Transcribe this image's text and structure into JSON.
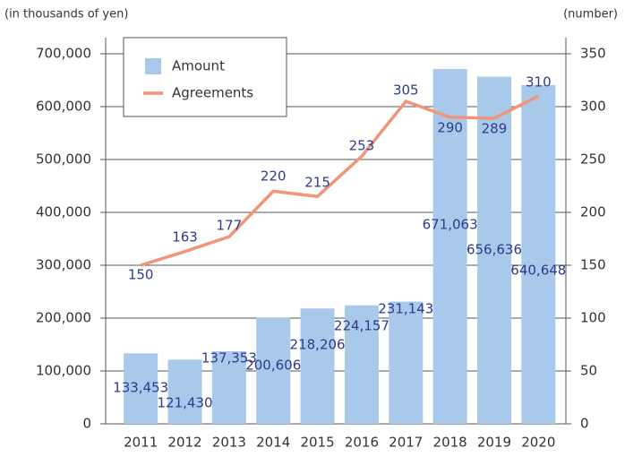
{
  "chart_data": {
    "type": "bar-line",
    "ylabel": "(in thousands of yen)",
    "y2label": "(number)",
    "categories": [
      "2011",
      "2012",
      "2013",
      "2014",
      "2015",
      "2016",
      "2017",
      "2018",
      "2019",
      "2020"
    ],
    "series": [
      {
        "name": "Amount",
        "color": "#a9c9ea",
        "type": "bar",
        "values": [
          133453,
          121430,
          137353,
          200606,
          218206,
          224157,
          231143,
          671063,
          656636,
          640648
        ],
        "value_labels": [
          "133,453",
          "121,430",
          "137,353",
          "200,606",
          "218,206",
          "224,157",
          "231,143",
          "671,063",
          "656,636",
          "640,648"
        ]
      },
      {
        "name": "Agreements",
        "color": "#f0957a",
        "type": "line",
        "axis": "y2",
        "values": [
          150,
          163,
          177,
          220,
          215,
          253,
          305,
          290,
          289,
          310
        ]
      }
    ],
    "ylim": [
      0,
      700000
    ],
    "yticks": [
      0,
      {
        "value": 100000,
        "label": "100,000"
      },
      {
        "value": 200000,
        "label": "200,000"
      },
      {
        "value": 300000,
        "label": "300,000"
      },
      {
        "value": 400000,
        "label": "400,000"
      },
      {
        "value": 500000,
        "label": "500,000"
      },
      {
        "value": 600000,
        "label": "600,000"
      },
      {
        "value": 700000,
        "label": "700,000"
      }
    ],
    "y2lim": [
      0,
      350
    ],
    "y2ticks": [
      0,
      50,
      100,
      150,
      200,
      250,
      300,
      350
    ],
    "grid": true,
    "legend": "upper left"
  }
}
